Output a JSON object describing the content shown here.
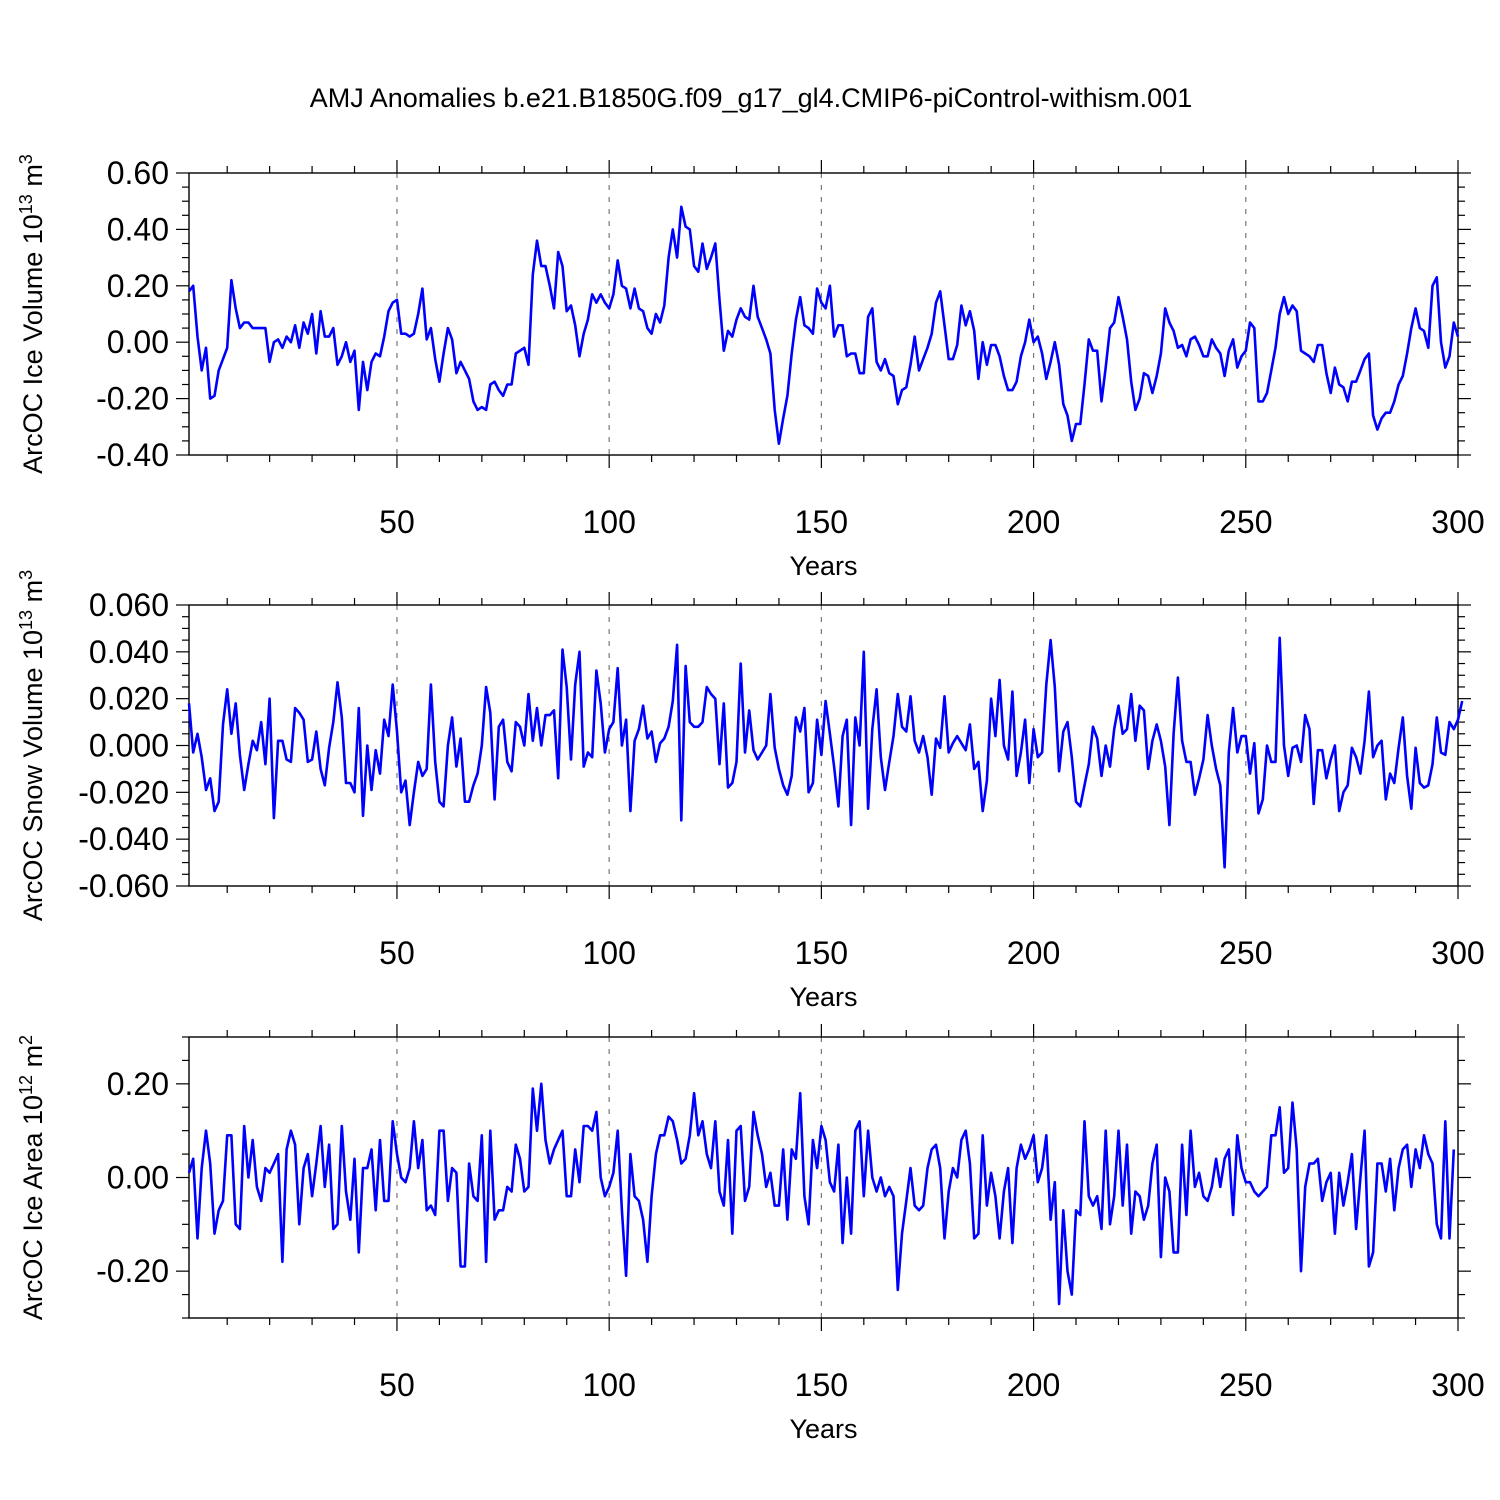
{
  "title": "AMJ Anomalies b.e21.B1850G.f09_g17_gl4.CMIP6-piControl-withism.001",
  "colors": {
    "series": "#0000ff",
    "grid": "#777777",
    "axis": "#000000"
  },
  "chart_data": [
    {
      "type": "line",
      "ylabel_main": "ArcOC Ice Volume 10",
      "ylabel_sup": "13",
      "ylabel_unit": "m",
      "ylabel_unit_sup": "3",
      "xlabel": "Years",
      "xlim": [
        1,
        300
      ],
      "ylim": [
        -0.4,
        0.6
      ],
      "yticks": [
        -0.4,
        -0.2,
        0.0,
        0.2,
        0.4,
        0.6
      ],
      "ytick_labels": [
        "-0.40",
        "-0.20",
        "0.00",
        "0.20",
        "0.40",
        "0.60"
      ],
      "yminor": 0.05,
      "xticks": [
        50,
        100,
        150,
        200,
        250,
        300
      ],
      "xtick_labels": [
        "50",
        "100",
        "150",
        "200",
        "250",
        "300"
      ],
      "xminor": 10,
      "grid": "dashed vertical at major x ticks",
      "series": [
        {
          "name": "ArcOC Ice Volume",
          "values": [
            0.18,
            0.2,
            0.02,
            -0.1,
            -0.02,
            -0.2,
            -0.19,
            -0.1,
            -0.06,
            -0.02,
            0.22,
            0.12,
            0.05,
            0.07,
            0.07,
            0.05,
            0.05,
            0.05,
            0.05,
            -0.07,
            0.0,
            0.01,
            -0.02,
            0.02,
            0.0,
            0.06,
            -0.02,
            0.07,
            0.03,
            0.1,
            -0.04,
            0.11,
            0.02,
            0.02,
            0.05,
            -0.08,
            -0.05,
            0.0,
            -0.07,
            -0.03,
            -0.24,
            -0.07,
            -0.17,
            -0.07,
            -0.04,
            -0.05,
            0.02,
            0.11,
            0.14,
            0.15,
            0.03,
            0.03,
            0.02,
            0.03,
            0.1,
            0.19,
            0.01,
            0.05,
            -0.06,
            -0.14,
            -0.04,
            0.05,
            0.01,
            -0.11,
            -0.07,
            -0.1,
            -0.13,
            -0.21,
            -0.24,
            -0.23,
            -0.24,
            -0.15,
            -0.14,
            -0.17,
            -0.19,
            -0.15,
            -0.15,
            -0.04,
            -0.03,
            -0.02,
            -0.08,
            0.24,
            0.36,
            0.27,
            0.27,
            0.2,
            0.12,
            0.32,
            0.27,
            0.11,
            0.13,
            0.06,
            -0.05,
            0.03,
            0.08,
            0.17,
            0.14,
            0.17,
            0.14,
            0.12,
            0.17,
            0.29,
            0.2,
            0.19,
            0.12,
            0.19,
            0.12,
            0.11,
            0.05,
            0.03,
            0.1,
            0.07,
            0.13,
            0.3,
            0.4,
            0.3,
            0.48,
            0.41,
            0.4,
            0.27,
            0.25,
            0.35,
            0.26,
            0.3,
            0.35,
            0.15,
            -0.03,
            0.04,
            0.02,
            0.08,
            0.12,
            0.09,
            0.08,
            0.2,
            0.09,
            0.05,
            0.01,
            -0.04,
            -0.24,
            -0.36,
            -0.27,
            -0.19,
            -0.04,
            0.08,
            0.16,
            0.06,
            0.05,
            0.03,
            0.19,
            0.14,
            0.12,
            0.2,
            0.02,
            0.06,
            0.06,
            -0.05,
            -0.04,
            -0.04,
            -0.11,
            -0.11,
            0.09,
            0.12,
            -0.07,
            -0.1,
            -0.06,
            -0.11,
            -0.12,
            -0.22,
            -0.17,
            -0.16,
            -0.08,
            0.02,
            -0.1,
            -0.06,
            -0.02,
            0.03,
            0.14,
            0.18,
            0.06,
            -0.06,
            -0.06,
            -0.01,
            0.13,
            0.06,
            0.11,
            0.04,
            -0.13,
            0.0,
            -0.08,
            -0.01,
            -0.01,
            -0.05,
            -0.12,
            -0.17,
            -0.17,
            -0.14,
            -0.05,
            0.0,
            0.08,
            0.0,
            0.02,
            -0.04,
            -0.13,
            -0.07,
            0.0,
            -0.08,
            -0.22,
            -0.26,
            -0.35,
            -0.29,
            -0.29,
            -0.15,
            0.01,
            -0.03,
            -0.03,
            -0.21,
            -0.09,
            0.05,
            0.07,
            0.16,
            0.09,
            0.01,
            -0.14,
            -0.24,
            -0.2,
            -0.11,
            -0.12,
            -0.18,
            -0.12,
            -0.04,
            0.12,
            0.07,
            0.04,
            -0.02,
            -0.01,
            -0.05,
            0.01,
            0.02,
            -0.01,
            -0.05,
            -0.05,
            0.01,
            -0.02,
            -0.04,
            -0.12,
            -0.03,
            0.01,
            -0.09,
            -0.05,
            -0.03,
            0.07,
            0.05,
            -0.21,
            -0.21,
            -0.18,
            -0.1,
            -0.02,
            0.1,
            0.16,
            0.1,
            0.13,
            0.11,
            -0.03,
            -0.04,
            -0.05,
            -0.07,
            -0.01,
            -0.01,
            -0.11,
            -0.18,
            -0.09,
            -0.15,
            -0.16,
            -0.21,
            -0.14,
            -0.14,
            -0.1,
            -0.06,
            -0.04,
            -0.26,
            -0.31,
            -0.27,
            -0.25,
            -0.25,
            -0.21,
            -0.15,
            -0.12,
            -0.04,
            0.05,
            0.12,
            0.05,
            0.04,
            -0.02,
            0.2,
            0.23,
            0.0,
            -0.09,
            -0.05,
            0.07,
            0.02
          ]
        }
      ]
    },
    {
      "type": "line",
      "ylabel_main": "ArcOC Snow Volume 10",
      "ylabel_sup": "13",
      "ylabel_unit": "m",
      "ylabel_unit_sup": "3",
      "xlabel": "Years",
      "xlim": [
        1,
        300
      ],
      "ylim": [
        -0.06,
        0.06
      ],
      "yticks": [
        -0.06,
        -0.04,
        -0.02,
        0.0,
        0.02,
        0.04,
        0.06
      ],
      "ytick_labels": [
        "-0.060",
        "-0.040",
        "-0.020",
        "0.000",
        "0.020",
        "0.040",
        "0.060"
      ],
      "yminor": 0.005,
      "xticks": [
        50,
        100,
        150,
        200,
        250,
        300
      ],
      "xtick_labels": [
        "50",
        "100",
        "150",
        "200",
        "250",
        "300"
      ],
      "xminor": 10,
      "grid": "dashed vertical at major x ticks",
      "series": [
        {
          "name": "ArcOC Snow Volume",
          "values": [
            0.018,
            -0.003,
            0.005,
            -0.005,
            -0.019,
            -0.014,
            -0.028,
            -0.024,
            0.009,
            0.024,
            0.005,
            0.018,
            -0.004,
            -0.019,
            -0.008,
            0.002,
            -0.002,
            0.01,
            -0.008,
            0.02,
            -0.031,
            0.002,
            0.002,
            -0.006,
            -0.007,
            0.016,
            0.014,
            0.011,
            -0.007,
            -0.006,
            0.006,
            -0.01,
            -0.017,
            -0.001,
            0.01,
            0.027,
            0.012,
            -0.016,
            -0.016,
            -0.02,
            0.016,
            -0.03,
            0.0,
            -0.019,
            -0.002,
            -0.012,
            0.011,
            0.004,
            0.026,
            0.006,
            -0.02,
            -0.015,
            -0.034,
            -0.02,
            -0.007,
            -0.013,
            -0.01,
            0.026,
            -0.007,
            -0.024,
            -0.026,
            0.0,
            0.012,
            -0.009,
            0.003,
            -0.024,
            -0.024,
            -0.017,
            -0.012,
            0.0,
            0.025,
            0.014,
            -0.023,
            0.008,
            0.011,
            -0.007,
            -0.011,
            0.01,
            0.008,
            0.0,
            0.022,
            0.002,
            0.016,
            0.0,
            0.013,
            0.013,
            0.015,
            -0.014,
            0.041,
            0.025,
            -0.006,
            0.026,
            0.04,
            -0.009,
            -0.003,
            -0.005,
            0.032,
            0.018,
            -0.003,
            0.007,
            0.01,
            0.033,
            0.0,
            0.011,
            -0.028,
            0.002,
            0.007,
            0.017,
            0.003,
            0.006,
            -0.007,
            0.001,
            0.003,
            0.008,
            0.019,
            0.043,
            -0.032,
            0.034,
            0.01,
            0.008,
            0.008,
            0.01,
            0.025,
            0.022,
            0.02,
            -0.008,
            0.018,
            -0.018,
            -0.016,
            -0.007,
            0.035,
            -0.003,
            0.015,
            -0.002,
            -0.006,
            -0.003,
            0.0,
            0.022,
            -0.001,
            -0.01,
            -0.017,
            -0.021,
            -0.013,
            0.012,
            0.006,
            0.016,
            -0.02,
            -0.016,
            0.011,
            -0.004,
            0.019,
            0.005,
            -0.009,
            -0.026,
            0.004,
            0.011,
            -0.034,
            0.012,
            0.0,
            0.04,
            -0.027,
            0.007,
            0.024,
            -0.005,
            -0.019,
            -0.007,
            0.004,
            0.022,
            0.008,
            0.006,
            0.021,
            0.002,
            -0.003,
            0.004,
            -0.005,
            -0.021,
            0.003,
            -0.001,
            0.021,
            -0.003,
            0.001,
            0.004,
            0.001,
            -0.002,
            0.009,
            -0.01,
            -0.007,
            -0.028,
            -0.015,
            0.02,
            0.004,
            0.028,
            0.0,
            -0.006,
            0.023,
            -0.013,
            -0.003,
            0.011,
            -0.016,
            0.007,
            -0.005,
            -0.003,
            0.026,
            0.045,
            0.025,
            -0.011,
            0.006,
            0.01,
            -0.005,
            -0.024,
            -0.026,
            -0.017,
            -0.008,
            0.008,
            0.003,
            -0.013,
            0.0,
            -0.009,
            0.007,
            0.017,
            0.005,
            0.007,
            0.022,
            0.002,
            0.017,
            0.015,
            -0.01,
            0.002,
            0.009,
            0.002,
            -0.009,
            -0.034,
            0.005,
            0.029,
            0.002,
            -0.007,
            -0.007,
            -0.021,
            -0.014,
            -0.006,
            0.013,
            0.0,
            -0.01,
            -0.017,
            -0.052,
            -0.003,
            0.016,
            -0.003,
            0.004,
            0.004,
            -0.012,
            0.001,
            -0.029,
            -0.023,
            0.0,
            -0.007,
            -0.007,
            0.046,
            0.0,
            -0.013,
            -0.001,
            0.0,
            -0.007,
            0.013,
            0.007,
            -0.025,
            -0.002,
            -0.002,
            -0.014,
            -0.006,
            0.0,
            -0.028,
            -0.02,
            -0.017,
            -0.001,
            -0.005,
            -0.012,
            0.002,
            0.023,
            -0.005,
            0.0,
            0.002,
            -0.023,
            -0.012,
            -0.016,
            -0.001,
            0.012,
            -0.013,
            -0.027,
            -0.001,
            -0.016,
            -0.018,
            -0.017,
            -0.008,
            0.012,
            -0.003,
            -0.004,
            0.01,
            0.007,
            0.011,
            0.019
          ]
        }
      ]
    },
    {
      "type": "line",
      "ylabel_main": "ArcOC Ice Area 10",
      "ylabel_sup": "12",
      "ylabel_unit": "m",
      "ylabel_unit_sup": "2",
      "xlabel": "Years",
      "xlim": [
        1,
        300
      ],
      "ylim": [
        -0.3,
        0.3
      ],
      "yticks": [
        -0.2,
        0.0,
        0.2
      ],
      "ytick_labels": [
        "-0.20",
        "0.00",
        "0.20"
      ],
      "yminor": 0.05,
      "xticks": [
        50,
        100,
        150,
        200,
        250,
        300
      ],
      "xtick_labels": [
        "50",
        "100",
        "150",
        "200",
        "250",
        "300"
      ],
      "xminor": 10,
      "grid": "dashed vertical at major x ticks",
      "series": [
        {
          "name": "ArcOC Ice Area",
          "values": [
            0.01,
            0.04,
            -0.13,
            0.02,
            0.1,
            0.03,
            -0.12,
            -0.07,
            -0.05,
            0.09,
            0.09,
            -0.1,
            -0.11,
            0.11,
            0.0,
            0.08,
            -0.02,
            -0.05,
            0.02,
            0.01,
            0.03,
            0.05,
            -0.18,
            0.06,
            0.1,
            0.07,
            -0.1,
            0.02,
            0.05,
            -0.04,
            0.03,
            0.11,
            -0.02,
            0.07,
            -0.11,
            -0.1,
            0.11,
            -0.03,
            -0.09,
            0.04,
            -0.16,
            0.02,
            0.02,
            0.06,
            -0.07,
            0.08,
            -0.05,
            -0.05,
            0.12,
            0.05,
            0.0,
            -0.01,
            0.02,
            0.12,
            0.02,
            0.08,
            -0.07,
            -0.06,
            -0.08,
            0.1,
            0.1,
            -0.05,
            0.02,
            0.01,
            -0.19,
            -0.19,
            0.03,
            -0.04,
            -0.05,
            0.09,
            -0.18,
            0.1,
            -0.09,
            -0.07,
            -0.07,
            -0.02,
            -0.03,
            0.07,
            0.04,
            -0.03,
            -0.02,
            0.19,
            0.1,
            0.2,
            0.08,
            0.03,
            0.06,
            0.08,
            0.1,
            -0.04,
            -0.04,
            0.06,
            -0.01,
            0.11,
            0.11,
            0.1,
            0.14,
            0.0,
            -0.04,
            -0.02,
            0.01,
            0.1,
            -0.07,
            -0.21,
            0.05,
            -0.04,
            -0.05,
            -0.09,
            -0.18,
            -0.04,
            0.05,
            0.09,
            0.09,
            0.13,
            0.12,
            0.08,
            0.03,
            0.04,
            0.09,
            0.18,
            0.09,
            0.12,
            0.05,
            0.02,
            0.12,
            -0.03,
            -0.06,
            0.08,
            -0.12,
            0.1,
            0.11,
            -0.05,
            -0.02,
            0.14,
            0.09,
            0.05,
            -0.02,
            0.01,
            -0.06,
            -0.06,
            0.06,
            -0.09,
            0.06,
            0.04,
            0.18,
            -0.04,
            -0.1,
            0.08,
            0.02,
            0.11,
            0.08,
            -0.01,
            -0.03,
            0.07,
            -0.14,
            0.0,
            -0.12,
            0.1,
            0.12,
            -0.04,
            0.1,
            0.0,
            -0.03,
            0.0,
            -0.04,
            -0.02,
            -0.04,
            -0.24,
            -0.12,
            -0.05,
            0.02,
            -0.06,
            -0.07,
            -0.06,
            0.02,
            0.06,
            0.07,
            0.02,
            -0.13,
            -0.03,
            0.02,
            0.0,
            0.08,
            0.1,
            0.03,
            -0.13,
            -0.12,
            0.09,
            -0.06,
            0.01,
            -0.04,
            -0.13,
            -0.03,
            0.02,
            -0.14,
            0.02,
            0.07,
            0.04,
            0.06,
            0.09,
            -0.01,
            0.02,
            0.09,
            -0.09,
            -0.01,
            -0.27,
            -0.07,
            -0.2,
            -0.25,
            -0.07,
            -0.08,
            0.12,
            -0.04,
            -0.06,
            -0.04,
            -0.11,
            0.1,
            -0.1,
            -0.04,
            0.1,
            -0.06,
            0.07,
            -0.12,
            -0.03,
            -0.04,
            -0.09,
            -0.06,
            0.03,
            0.07,
            -0.17,
            0.0,
            -0.03,
            -0.16,
            -0.16,
            0.07,
            -0.08,
            0.1,
            -0.02,
            0.01,
            -0.04,
            -0.05,
            -0.02,
            0.04,
            -0.02,
            0.04,
            0.06,
            -0.08,
            0.09,
            0.02,
            -0.01,
            -0.01,
            -0.03,
            -0.04,
            -0.03,
            -0.02,
            0.09,
            0.09,
            0.15,
            0.01,
            0.02,
            0.16,
            0.06,
            -0.2,
            -0.02,
            0.03,
            0.03,
            0.04,
            -0.05,
            -0.01,
            0.01,
            -0.12,
            0.01,
            -0.06,
            -0.01,
            0.05,
            -0.11,
            0.0,
            0.1,
            -0.19,
            -0.16,
            0.03,
            0.03,
            -0.03,
            0.04,
            -0.07,
            0.02,
            0.06,
            0.07,
            -0.02,
            0.06,
            0.02,
            0.09,
            0.05,
            0.03,
            -0.1,
            -0.13,
            0.12,
            -0.13,
            0.06
          ]
        }
      ]
    }
  ]
}
